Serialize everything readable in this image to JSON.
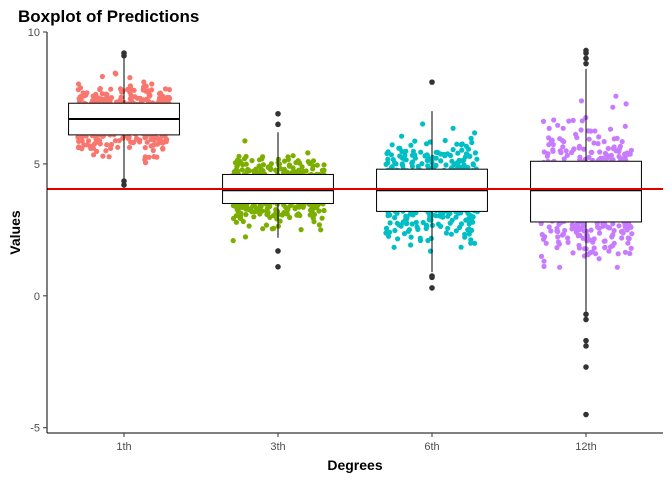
{
  "chart_data": {
    "type": "boxplot",
    "title": "Boxplot of Predictions",
    "xlabel": "Degrees",
    "ylabel": "Values",
    "ylim": [
      -5.2,
      10.0
    ],
    "yticks": [
      -5,
      0,
      5,
      10
    ],
    "grid": false,
    "legend": "none",
    "categories": [
      "1th",
      "3th",
      "6th",
      "12th"
    ],
    "boxes": [
      {
        "category": "1th",
        "whisker_low": 4.3,
        "q1": 6.1,
        "median": 6.7,
        "q3": 7.3,
        "whisker_high": 9.2,
        "outliers": [
          4.2,
          4.35,
          9.1,
          9.2
        ],
        "jitter_range": [
          4.2,
          9.2
        ]
      },
      {
        "category": "3th",
        "whisker_low": 2.2,
        "q1": 3.5,
        "median": 4.0,
        "q3": 4.6,
        "whisker_high": 6.2,
        "outliers": [
          1.1,
          1.7,
          6.5,
          6.9
        ],
        "jitter_range": [
          1.1,
          6.9
        ]
      },
      {
        "category": "6th",
        "whisker_low": 0.9,
        "q1": 3.2,
        "median": 4.0,
        "q3": 4.8,
        "whisker_high": 7.0,
        "outliers": [
          0.3,
          0.7,
          0.75,
          8.1
        ],
        "jitter_range": [
          0.3,
          8.1
        ]
      },
      {
        "category": "12th",
        "whisker_low": -0.6,
        "q1": 2.8,
        "median": 4.0,
        "q3": 5.1,
        "whisker_high": 8.6,
        "outliers": [
          -0.7,
          -0.9,
          -1.7,
          -1.9,
          -2.7,
          -4.5,
          8.8,
          9.0,
          9.2,
          9.3
        ],
        "jitter_range": [
          -4.6,
          9.3
        ]
      }
    ],
    "reference_line": {
      "y": 4.05,
      "color": "#e00000"
    },
    "colors": {
      "1th": "#f8766d",
      "3th": "#7cae00",
      "6th": "#00bfc4",
      "12th": "#c77cff",
      "outlier": "#333333"
    }
  }
}
